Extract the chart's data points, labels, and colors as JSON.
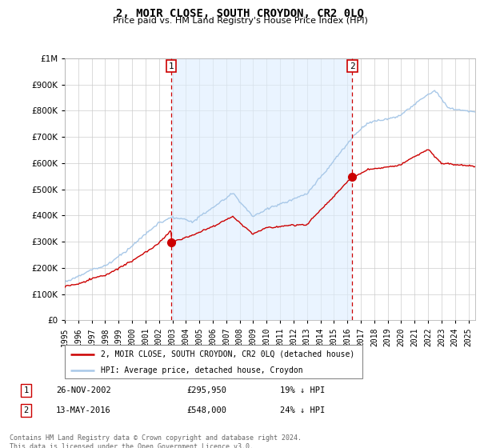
{
  "title": "2, MOIR CLOSE, SOUTH CROYDON, CR2 0LQ",
  "subtitle": "Price paid vs. HM Land Registry's House Price Index (HPI)",
  "legend_line1": "2, MOIR CLOSE, SOUTH CROYDON, CR2 0LQ (detached house)",
  "legend_line2": "HPI: Average price, detached house, Croydon",
  "table_row1_num": "1",
  "table_row1_date": "26-NOV-2002",
  "table_row1_price": "£295,950",
  "table_row1_hpi": "19% ↓ HPI",
  "table_row2_num": "2",
  "table_row2_date": "13-MAY-2016",
  "table_row2_price": "£548,000",
  "table_row2_hpi": "24% ↓ HPI",
  "footnote": "Contains HM Land Registry data © Crown copyright and database right 2024.\nThis data is licensed under the Open Government Licence v3.0.",
  "sale1_year": 2002.9,
  "sale1_price": 295950,
  "sale2_year": 2016.37,
  "sale2_price": 548000,
  "hpi_color": "#a8c8e8",
  "sale_color": "#cc0000",
  "vline_color": "#cc0000",
  "marker_color": "#cc0000",
  "shade_color": "#ddeeff",
  "background_color": "#ffffff",
  "plot_bg_color": "#ffffff",
  "ylim_max": 1000000,
  "xlim_start": 1995,
  "xlim_end": 2025.5
}
